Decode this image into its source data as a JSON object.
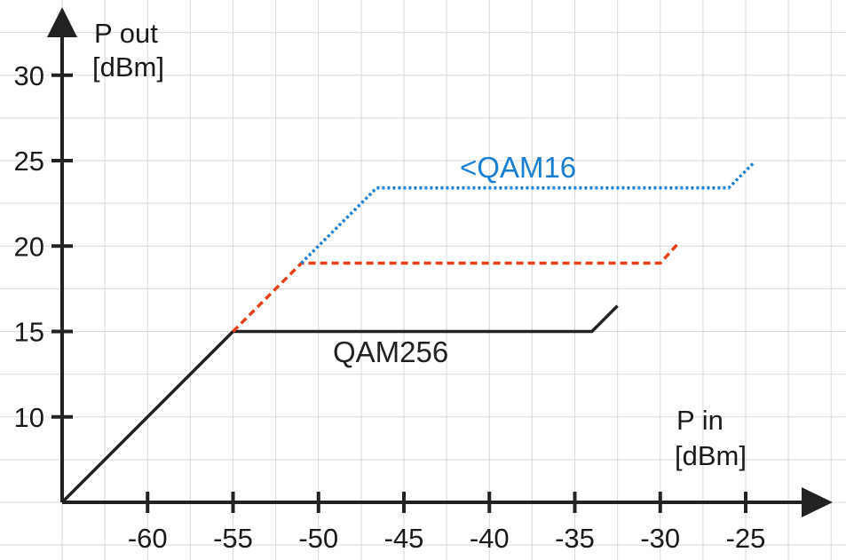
{
  "chart_data": {
    "type": "line",
    "x_axis": {
      "title_line1": "P in",
      "title_line2": "[dBm]",
      "range": [
        -65,
        -20
      ],
      "ticks": [
        -60,
        -55,
        -50,
        -45,
        -40,
        -35,
        -30,
        -25
      ],
      "tick_labels": [
        "-60",
        "-55",
        "-50",
        "-45",
        "-40",
        "-35",
        "-30",
        "-25"
      ]
    },
    "y_axis": {
      "title_line1": "P out",
      "title_line2": "[dBm]",
      "range": [
        5,
        31
      ],
      "ticks": [
        10,
        15,
        20,
        25,
        30
      ],
      "tick_labels": [
        "10",
        "15",
        "20",
        "25",
        "30"
      ]
    },
    "grid": true,
    "series": [
      {
        "name": "QAM256",
        "color": "#222222",
        "style": "solid",
        "points": [
          [
            -65,
            5
          ],
          [
            -55,
            15
          ],
          [
            -34,
            15
          ],
          [
            -32.5,
            16.5
          ]
        ]
      },
      {
        "name": "",
        "color": "#e8401c",
        "style": "dashed",
        "points": [
          [
            -55,
            15
          ],
          [
            -51,
            19
          ],
          [
            -30,
            19
          ],
          [
            -29,
            20.1
          ]
        ]
      },
      {
        "name": "<QAM16",
        "color": "#1a7fd0",
        "style": "dotted",
        "points": [
          [
            -51,
            19
          ],
          [
            -46.6,
            23.4
          ],
          [
            -26,
            23.4
          ],
          [
            -24.5,
            24.9
          ]
        ]
      }
    ]
  }
}
